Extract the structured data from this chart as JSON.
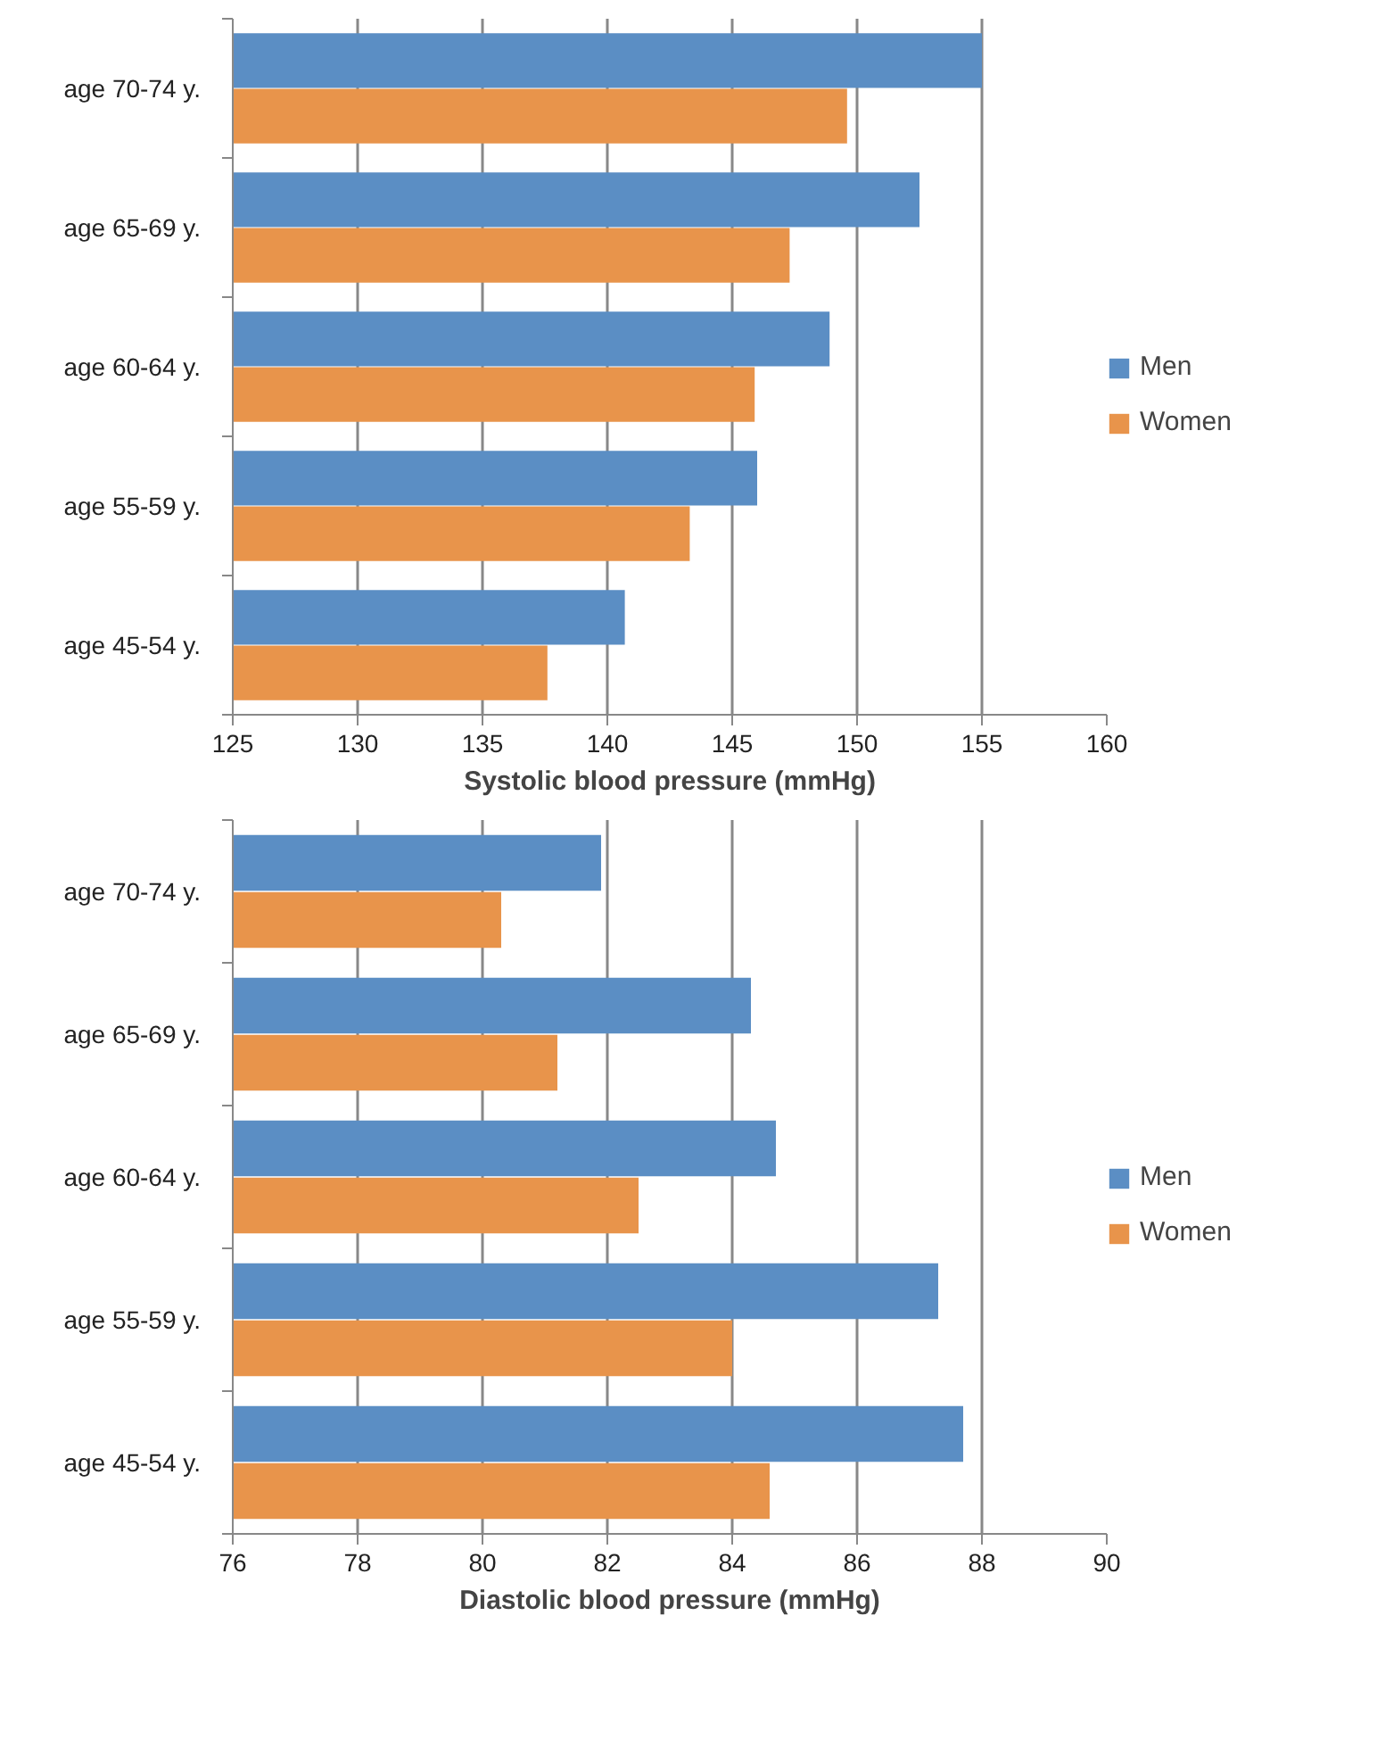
{
  "chart_data": [
    {
      "type": "bar",
      "orientation": "horizontal",
      "xlabel": "Systolic blood pressure (mmHg)",
      "categories": [
        "age 70-74 y.",
        "age 65-69 y.",
        "age 60-64 y.",
        "age 55-59 y.",
        "age 45-54 y."
      ],
      "series": [
        {
          "name": "Men",
          "color": "#5b8ec4",
          "values": [
            155.0,
            152.5,
            148.9,
            146.0,
            140.7
          ]
        },
        {
          "name": "Women",
          "color": "#e8944b",
          "values": [
            149.6,
            147.3,
            145.9,
            143.3,
            137.6
          ]
        }
      ],
      "xlim": [
        125,
        160
      ],
      "xticks": [
        125,
        130,
        135,
        140,
        145,
        150,
        155,
        160
      ],
      "grid": "x",
      "legend": "right"
    },
    {
      "type": "bar",
      "orientation": "horizontal",
      "xlabel": "Diastolic blood pressure (mmHg)",
      "categories": [
        "age 70-74 y.",
        "age 65-69 y.",
        "age 60-64 y.",
        "age 55-59 y.",
        "age 45-54 y."
      ],
      "series": [
        {
          "name": "Men",
          "color": "#5b8ec4",
          "values": [
            81.9,
            84.3,
            84.7,
            87.3,
            87.7
          ]
        },
        {
          "name": "Women",
          "color": "#e8944b",
          "values": [
            80.3,
            81.2,
            82.5,
            84.0,
            84.6
          ]
        }
      ],
      "xlim": [
        76,
        90
      ],
      "xticks": [
        76,
        78,
        80,
        82,
        84,
        86,
        88,
        90
      ],
      "grid": "x",
      "legend": "right"
    }
  ]
}
